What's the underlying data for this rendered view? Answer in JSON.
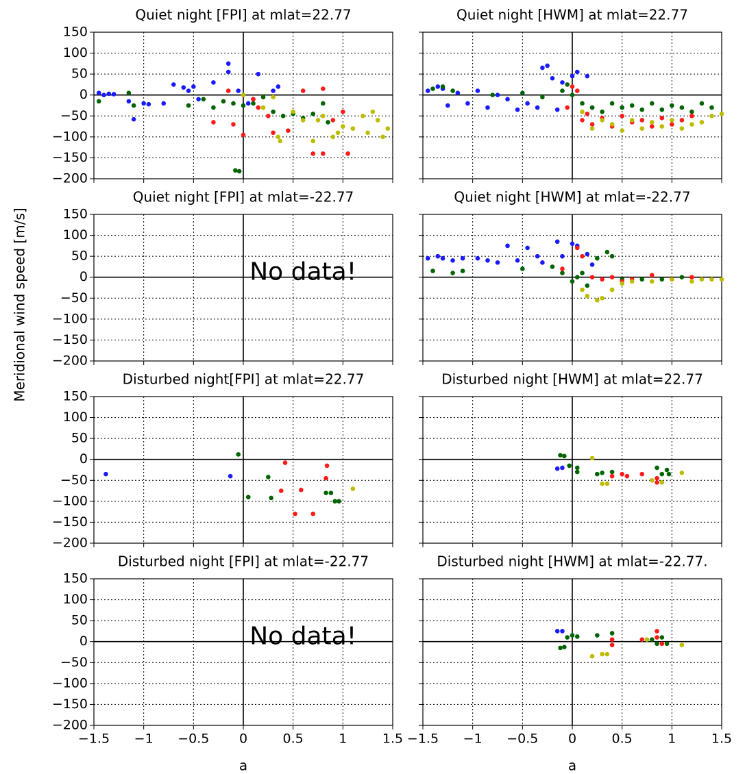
{
  "ylabel": "Meridional wind speed [m/s]",
  "chart_data": [
    {
      "type": "scatter",
      "title": "Quiet night [FPI] at mlat=22.77",
      "xlim": [
        -1.5,
        1.5
      ],
      "ylim": [
        -200,
        150
      ],
      "grid": true,
      "show_xticklabels": false,
      "show_yticklabels": true,
      "xticks": [
        -1.5,
        -1,
        -0.5,
        0,
        0.5,
        1,
        1.5
      ],
      "yticks": [
        150,
        100,
        50,
        0,
        {
          "value": -50,
          "label": "−50"
        },
        {
          "value": -100,
          "label": "−100"
        },
        {
          "value": -150,
          "label": "−150"
        },
        {
          "value": -200,
          "label": "−200"
        }
      ],
      "series": [
        {
          "color": "#1a1aff",
          "x": [
            -1.45,
            -1.4,
            -1.35,
            -1.3,
            -1.15,
            -1.1,
            -1.0,
            -0.95,
            -0.8,
            -0.7,
            -0.6,
            -0.55,
            -0.5,
            -0.45,
            -0.3,
            -0.15,
            -0.15,
            -0.05,
            0.05,
            0.15,
            0.3,
            0.35,
            0.1
          ],
          "values": [
            5,
            0,
            3,
            2,
            -15,
            -58,
            -20,
            -22,
            -20,
            25,
            18,
            10,
            20,
            -10,
            30,
            75,
            55,
            10,
            -20,
            50,
            10,
            20,
            -10
          ]
        },
        {
          "color": "#006400",
          "x": [
            -1.45,
            -1.15,
            -1.1,
            -0.55,
            -0.4,
            -0.3,
            -0.2,
            -0.1,
            -0.08,
            -0.04,
            0.0,
            0.1,
            0.2,
            0.3,
            0.4,
            0.5,
            0.6,
            0.7,
            0.8,
            0.85
          ],
          "values": [
            -15,
            5,
            -25,
            -25,
            -10,
            -30,
            -15,
            -20,
            -180,
            -182,
            -25,
            -20,
            -5,
            -40,
            -50,
            -45,
            -55,
            -45,
            -20,
            -65
          ]
        },
        {
          "color": "#ff1a1a",
          "x": [
            -0.3,
            -0.15,
            -0.1,
            0.0,
            0.1,
            0.15,
            0.25,
            0.3,
            0.45,
            0.6,
            0.8,
            0.8,
            0.7,
            1.0,
            1.05,
            0.9
          ],
          "values": [
            -65,
            10,
            -70,
            -95,
            -10,
            -30,
            -50,
            -90,
            -85,
            10,
            15,
            -140,
            -140,
            -40,
            -140,
            -60
          ]
        },
        {
          "color": "#bcbc00",
          "x": [
            0.0,
            0.2,
            0.3,
            0.35,
            0.37,
            0.5,
            0.6,
            0.7,
            0.8,
            0.9,
            0.95,
            1.0,
            1.1,
            1.2,
            1.3,
            1.35,
            1.4,
            1.45,
            1.25,
            0.75
          ],
          "values": [
            0,
            -30,
            -5,
            -100,
            -110,
            -40,
            -60,
            -110,
            -50,
            -100,
            -90,
            -75,
            -80,
            -50,
            -40,
            -60,
            -100,
            -80,
            -90,
            -60
          ]
        }
      ]
    },
    {
      "type": "scatter",
      "title": "Quiet night [HWM] at mlat=22.77",
      "xlim": [
        -1.5,
        1.5
      ],
      "ylim": [
        -200,
        150
      ],
      "grid": true,
      "show_xticklabels": false,
      "show_yticklabels": false,
      "xticks": [
        -1.5,
        -1,
        -0.5,
        0,
        0.5,
        1,
        1.5
      ],
      "yticks": [
        150,
        100,
        50,
        0,
        -50,
        -100,
        -150,
        -200
      ],
      "series": [
        {
          "color": "#1a1aff",
          "x": [
            -1.45,
            -1.35,
            -1.3,
            -1.25,
            -1.15,
            -1.05,
            -0.95,
            -0.85,
            -0.75,
            -0.65,
            -0.55,
            -0.45,
            -0.35,
            -0.3,
            -0.25,
            -0.2,
            -0.15,
            -0.1,
            0,
            0.05,
            0.15,
            0.2
          ],
          "values": [
            10,
            20,
            15,
            -25,
            5,
            -20,
            10,
            -30,
            0,
            -10,
            -35,
            -20,
            -30,
            65,
            70,
            40,
            -35,
            30,
            45,
            55,
            45,
            -30
          ]
        },
        {
          "color": "#006400",
          "x": [
            -1.4,
            -1.3,
            -1.2,
            -0.8,
            -0.5,
            -0.3,
            -0.1,
            -0.05,
            0,
            0.1,
            0.2,
            0.3,
            0.4,
            0.5,
            0.6,
            0.7,
            0.8,
            0.9,
            1.0,
            1.1,
            1.2,
            1.3,
            1.4
          ],
          "values": [
            15,
            20,
            10,
            0,
            5,
            -5,
            10,
            25,
            0,
            -20,
            -30,
            -40,
            -20,
            -30,
            -25,
            -35,
            -20,
            -35,
            -25,
            -30,
            -40,
            -20,
            -30
          ]
        },
        {
          "color": "#ff1a1a",
          "x": [
            0,
            0.05,
            0.1,
            0.15,
            0.2,
            0.3,
            0.4,
            0.5,
            0.6,
            0.7,
            0.8,
            0.9,
            1.0,
            1.1,
            1.2,
            -0.05
          ],
          "values": [
            20,
            10,
            -60,
            -45,
            -70,
            -55,
            -75,
            -50,
            -65,
            -60,
            -75,
            -55,
            -70,
            -60,
            -50,
            -30
          ]
        },
        {
          "color": "#bcbc00",
          "x": [
            0.1,
            0.2,
            0.3,
            0.4,
            0.5,
            0.6,
            0.7,
            0.8,
            0.9,
            1.0,
            1.1,
            1.2,
            1.3,
            1.4,
            1.5
          ],
          "values": [
            -40,
            -80,
            -60,
            -70,
            -85,
            -60,
            -80,
            -65,
            -75,
            -60,
            -80,
            -70,
            -65,
            -50,
            -45
          ]
        }
      ]
    },
    {
      "type": "scatter",
      "title": "Quiet night [FPI] at mlat=-22.77",
      "annotation": "No data!",
      "xlim": [
        -1.5,
        1.5
      ],
      "ylim": [
        -200,
        150
      ],
      "grid": true,
      "show_xticklabels": false,
      "show_yticklabels": true,
      "xticks": [
        -1.5,
        -1,
        -0.5,
        0,
        0.5,
        1,
        1.5
      ],
      "yticks": [
        150,
        100,
        50,
        0,
        {
          "value": -50,
          "label": "−50"
        },
        {
          "value": -100,
          "label": "−100"
        },
        {
          "value": -150,
          "label": "−150"
        },
        {
          "value": -200,
          "label": "−200"
        }
      ],
      "series": []
    },
    {
      "type": "scatter",
      "title": "Quiet night [HWM] at mlat=-22.77",
      "xlim": [
        -1.5,
        1.5
      ],
      "ylim": [
        -200,
        150
      ],
      "grid": true,
      "show_xticklabels": false,
      "show_yticklabels": false,
      "xticks": [
        -1.5,
        -1,
        -0.5,
        0,
        0.5,
        1,
        1.5
      ],
      "yticks": [
        150,
        100,
        50,
        0,
        -50,
        -100,
        -150,
        -200
      ],
      "series": [
        {
          "color": "#1a1aff",
          "x": [
            -1.45,
            -1.35,
            -1.3,
            -1.2,
            -1.1,
            -0.95,
            -0.85,
            -0.75,
            -0.65,
            -0.55,
            -0.45,
            -0.35,
            -0.3,
            -0.15,
            -0.1,
            0,
            0.05,
            0.15,
            0.2
          ],
          "values": [
            45,
            50,
            45,
            40,
            45,
            45,
            40,
            35,
            75,
            40,
            70,
            50,
            35,
            85,
            50,
            80,
            75,
            55,
            30
          ]
        },
        {
          "color": "#006400",
          "x": [
            -1.4,
            -1.2,
            -1.1,
            -0.5,
            -0.2,
            -0.1,
            0,
            0.05,
            0.1,
            0.15,
            0.25,
            0.35,
            0.4,
            0.5,
            0.7,
            0.9,
            1.1
          ],
          "values": [
            15,
            10,
            15,
            20,
            25,
            10,
            -10,
            0,
            10,
            -20,
            45,
            60,
            50,
            -5,
            -5,
            -5,
            0
          ]
        },
        {
          "color": "#ff1a1a",
          "x": [
            -0.1,
            0.05,
            0.1,
            0.2,
            0.3,
            0.4,
            0.6,
            0.8,
            1.0,
            1.2,
            0.5
          ],
          "values": [
            20,
            70,
            50,
            0,
            -5,
            0,
            -5,
            5,
            -5,
            0,
            -10
          ]
        },
        {
          "color": "#bcbc00",
          "x": [
            0.1,
            0.15,
            0.25,
            0.3,
            0.4,
            0.5,
            0.6,
            0.8,
            1.0,
            1.2,
            1.3,
            1.4,
            1.5
          ],
          "values": [
            -30,
            -45,
            -55,
            -50,
            -30,
            -15,
            -10,
            -10,
            -5,
            -10,
            -5,
            -5,
            -5
          ]
        }
      ]
    },
    {
      "type": "scatter",
      "title": "Disturbed night[FPI] at mlat=22.77",
      "xlim": [
        -1.5,
        1.5
      ],
      "ylim": [
        -200,
        150
      ],
      "grid": true,
      "show_xticklabels": false,
      "show_yticklabels": true,
      "xticks": [
        -1.5,
        -1,
        -0.5,
        0,
        0.5,
        1,
        1.5
      ],
      "yticks": [
        150,
        100,
        50,
        0,
        {
          "value": -50,
          "label": "−50"
        },
        {
          "value": -100,
          "label": "−100"
        },
        {
          "value": -150,
          "label": "−150"
        },
        {
          "value": -200,
          "label": "−200"
        }
      ],
      "series": [
        {
          "color": "#1a1aff",
          "x": [
            -1.38,
            -0.13
          ],
          "values": [
            -35,
            -40
          ]
        },
        {
          "color": "#006400",
          "x": [
            -0.05,
            0.05,
            0.25,
            0.28,
            0.83,
            0.88,
            0.92,
            0.96
          ],
          "values": [
            12,
            -90,
            -42,
            -92,
            -80,
            -80,
            -100,
            -100
          ]
        },
        {
          "color": "#ff1a1a",
          "x": [
            0.38,
            0.42,
            0.52,
            0.58,
            0.7,
            0.83,
            0.84
          ],
          "values": [
            -75,
            -8,
            -130,
            -73,
            -130,
            -45,
            -15
          ]
        },
        {
          "color": "#bcbc00",
          "x": [
            1.1
          ],
          "values": [
            -70
          ]
        }
      ]
    },
    {
      "type": "scatter",
      "title": "Disturbed night [HWM] at mlat=22.77",
      "xlim": [
        -1.5,
        1.5
      ],
      "ylim": [
        -200,
        150
      ],
      "grid": true,
      "show_xticklabels": false,
      "show_yticklabels": false,
      "xticks": [
        -1.5,
        -1,
        -0.5,
        0,
        0.5,
        1,
        1.5
      ],
      "yticks": [
        150,
        100,
        50,
        0,
        -50,
        -100,
        -150,
        -200
      ],
      "series": [
        {
          "color": "#1a1aff",
          "x": [
            -0.15,
            -0.1
          ],
          "values": [
            -22,
            -20
          ]
        },
        {
          "color": "#006400",
          "x": [
            -0.12,
            -0.08,
            -0.03,
            0.05,
            0.05,
            0.25,
            0.3,
            0.4,
            0.85,
            0.9,
            0.95,
            0.97
          ],
          "values": [
            10,
            8,
            -15,
            -20,
            -30,
            -35,
            -32,
            -30,
            -20,
            -35,
            -25,
            -35
          ]
        },
        {
          "color": "#ff1a1a",
          "x": [
            0.4,
            0.5,
            0.55,
            0.7,
            0.85,
            0.85
          ],
          "values": [
            -40,
            -35,
            -40,
            -35,
            -45,
            -55
          ]
        },
        {
          "color": "#bcbc00",
          "x": [
            0.2,
            0.3,
            0.35,
            0.8,
            0.9,
            1.1
          ],
          "values": [
            3,
            -58,
            -58,
            -50,
            -55,
            -32
          ]
        }
      ]
    },
    {
      "type": "scatter",
      "title": "Disturbed night [FPI] at mlat=-22.77",
      "annotation": "No data!",
      "xlabel": "a",
      "xlim": [
        -1.5,
        1.5
      ],
      "ylim": [
        -200,
        150
      ],
      "grid": true,
      "show_xticklabels": true,
      "show_yticklabels": true,
      "xticks": [
        {
          "value": -1.5,
          "label": "−1.5"
        },
        {
          "value": -1,
          "label": "−1"
        },
        {
          "value": -0.5,
          "label": "−0.5"
        },
        0,
        0.5,
        1,
        1.5
      ],
      "yticks": [
        150,
        100,
        50,
        0,
        {
          "value": -50,
          "label": "−50"
        },
        {
          "value": -100,
          "label": "−100"
        },
        {
          "value": -150,
          "label": "−150"
        },
        {
          "value": -200,
          "label": "−200"
        }
      ],
      "series": []
    },
    {
      "type": "scatter",
      "title": "Disturbed night [HWM] at mlat=-22.77.",
      "xlabel": "a",
      "xlim": [
        -1.5,
        1.5
      ],
      "ylim": [
        -200,
        150
      ],
      "grid": true,
      "show_xticklabels": true,
      "show_yticklabels": false,
      "xticks": [
        {
          "value": -1.5,
          "label": "−1.5"
        },
        {
          "value": -1,
          "label": "−1"
        },
        {
          "value": -0.5,
          "label": "−0.5"
        },
        0,
        0.5,
        1,
        1.5
      ],
      "yticks": [
        150,
        100,
        50,
        0,
        -50,
        -100,
        -150,
        -200
      ],
      "series": [
        {
          "color": "#1a1aff",
          "x": [
            -0.15,
            -0.1
          ],
          "values": [
            25,
            25
          ]
        },
        {
          "color": "#006400",
          "x": [
            -0.12,
            -0.08,
            -0.05,
            0.0,
            0.05,
            0.25,
            0.4,
            0.8,
            0.85,
            0.9,
            0.95
          ],
          "values": [
            -15,
            -13,
            10,
            15,
            12,
            15,
            20,
            5,
            -5,
            10,
            -5
          ]
        },
        {
          "color": "#ff1a1a",
          "x": [
            0.4,
            0.4,
            0.7,
            0.85,
            0.85,
            0.9
          ],
          "values": [
            -8,
            5,
            5,
            25,
            10,
            -5
          ]
        },
        {
          "color": "#bcbc00",
          "x": [
            0.2,
            0.3,
            0.35,
            0.75,
            1.1
          ],
          "values": [
            -35,
            -30,
            -30,
            5,
            -8
          ]
        }
      ]
    }
  ]
}
